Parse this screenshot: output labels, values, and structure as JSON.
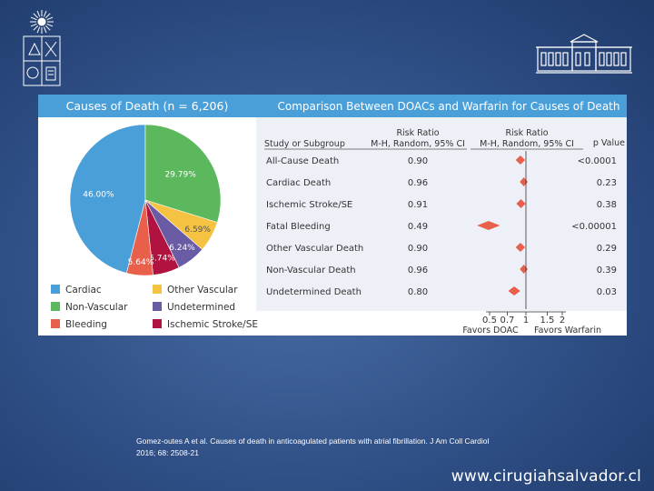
{
  "slide": {
    "citation_line1": "Gomez-outes A et al. Causes of death in anticoagulated patients with atrial fibrillation. J Am Coll Cardiol",
    "citation_line2": "2016; 68: 2508-21",
    "website": "www.cirugiahsalvador.cl",
    "logo_left_icon": "university-crest-icon",
    "logo_right_icon": "hospital-building-icon"
  },
  "pie_panel": {
    "title": "Causes of Death (n = 6,206)",
    "header_color": "#4a9fd8",
    "legend": [
      {
        "label": "Cardiac",
        "color": "#4a9fd8"
      },
      {
        "label": "Other Vascular",
        "color": "#f5c242"
      },
      {
        "label": "Non-Vascular",
        "color": "#5cb85c"
      },
      {
        "label": "Undetermined",
        "color": "#6a5ba5"
      },
      {
        "label": "Bleeding",
        "color": "#e8604c"
      },
      {
        "label": "Ischemic Stroke/SE",
        "color": "#b01340"
      }
    ]
  },
  "forest_panel": {
    "title": "Comparison Between DOACs and Warfarin for Causes of Death",
    "col_study": "Study or Subgroup",
    "col_rr_table_1": "Risk Ratio",
    "col_rr_table_2": "M-H, Random, 95% CI",
    "col_rr_plot_1": "Risk Ratio",
    "col_rr_plot_2": "M-H, Random, 95% CI",
    "col_p": "p Value",
    "favors_left": "Favors DOAC",
    "favors_right": "Favors Warfarin",
    "marker_color": "#e8604c"
  },
  "chart_data": [
    {
      "type": "pie",
      "title": "Causes of Death (n = 6,206)",
      "slices": [
        {
          "label": "Cardiac",
          "value": 46.0,
          "display": "46.00%"
        },
        {
          "label": "Non-Vascular",
          "value": 29.79,
          "display": "29.79%"
        },
        {
          "label": "Other Vascular",
          "value": 6.59,
          "display": "6.59%"
        },
        {
          "label": "Undetermined",
          "value": 6.24,
          "display": "6.24%"
        },
        {
          "label": "Ischemic Stroke/SE",
          "value": 5.74,
          "display": "5.74%"
        },
        {
          "label": "Bleeding",
          "value": 5.64,
          "display": "5.64%"
        }
      ]
    },
    {
      "type": "forest",
      "title": "Comparison Between DOACs and Warfarin for Causes of Death",
      "xscale": "log",
      "xlim": [
        0.5,
        2
      ],
      "xticks": [
        "0.5",
        "0.7",
        "1",
        "1.5",
        "2"
      ],
      "tick_values": [
        0.5,
        0.7,
        1,
        1.5,
        2
      ],
      "rows": [
        {
          "label": "All-Cause Death",
          "rr": 0.9,
          "rr_text": "0.90",
          "p": "<0.0001"
        },
        {
          "label": "Cardiac Death",
          "rr": 0.96,
          "rr_text": "0.96",
          "p": "0.23"
        },
        {
          "label": "Ischemic Stroke/SE",
          "rr": 0.91,
          "rr_text": "0.91",
          "p": "0.38"
        },
        {
          "label": "Fatal Bleeding",
          "rr": 0.49,
          "rr_text": "0.49",
          "p": "<0.00001"
        },
        {
          "label": "Other Vascular Death",
          "rr": 0.9,
          "rr_text": "0.90",
          "p": "0.29"
        },
        {
          "label": "Non-Vascular Death",
          "rr": 0.96,
          "rr_text": "0.96",
          "p": "0.39"
        },
        {
          "label": "Undetermined Death",
          "rr": 0.8,
          "rr_text": "0.80",
          "p": "0.03"
        }
      ]
    }
  ]
}
